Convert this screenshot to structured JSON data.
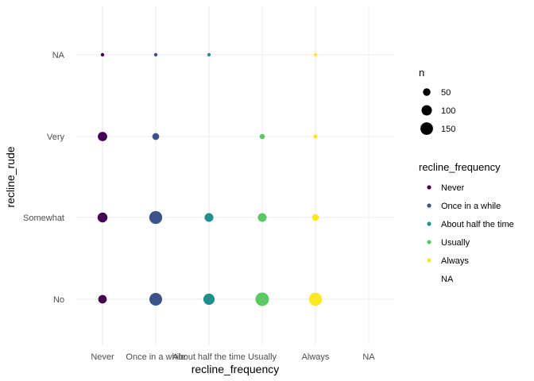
{
  "chart_data": {
    "type": "scatter",
    "x_axis": {
      "label": "recline_frequency",
      "categories": [
        "Never",
        "Once in a while",
        "About half the time",
        "Usually",
        "Always",
        "NA"
      ]
    },
    "y_axis": {
      "label": "recline_rude",
      "categories": [
        "No",
        "Somewhat",
        "Very",
        "NA"
      ]
    },
    "grid": true,
    "points": [
      {
        "x": "Never",
        "y": "No",
        "n": 65,
        "color_group": "Never"
      },
      {
        "x": "Never",
        "y": "Somewhat",
        "n": 90,
        "color_group": "Never"
      },
      {
        "x": "Never",
        "y": "Very",
        "n": 80,
        "color_group": "Never"
      },
      {
        "x": "Never",
        "y": "NA",
        "n": 5,
        "color_group": "Never"
      },
      {
        "x": "Once in a while",
        "y": "No",
        "n": 155,
        "color_group": "Once in a while"
      },
      {
        "x": "Once in a while",
        "y": "Somewhat",
        "n": 160,
        "color_group": "Once in a while"
      },
      {
        "x": "Once in a while",
        "y": "Very",
        "n": 40,
        "color_group": "Once in a while"
      },
      {
        "x": "Once in a while",
        "y": "NA",
        "n": 5,
        "color_group": "Once in a while"
      },
      {
        "x": "About half the time",
        "y": "No",
        "n": 120,
        "color_group": "About half the time"
      },
      {
        "x": "About half the time",
        "y": "Somewhat",
        "n": 70,
        "color_group": "About half the time"
      },
      {
        "x": "About half the time",
        "y": "NA",
        "n": 5,
        "color_group": "About half the time"
      },
      {
        "x": "Usually",
        "y": "No",
        "n": 175,
        "color_group": "Usually"
      },
      {
        "x": "Usually",
        "y": "Somewhat",
        "n": 70,
        "color_group": "Usually"
      },
      {
        "x": "Usually",
        "y": "Very",
        "n": 20,
        "color_group": "Usually"
      },
      {
        "x": "Always",
        "y": "No",
        "n": 165,
        "color_group": "Always"
      },
      {
        "x": "Always",
        "y": "Somewhat",
        "n": 40,
        "color_group": "Always"
      },
      {
        "x": "Always",
        "y": "Very",
        "n": 10,
        "color_group": "Always"
      },
      {
        "x": "Always",
        "y": "NA",
        "n": 5,
        "color_group": "Always"
      }
    ],
    "size_legend": {
      "title": "n",
      "breaks": [
        50,
        100,
        150
      ]
    },
    "color_legend": {
      "title": "recline_frequency",
      "items": [
        {
          "label": "Never",
          "color": "#440154"
        },
        {
          "label": "Once in a while",
          "color": "#3B528B"
        },
        {
          "label": "About half the time",
          "color": "#21908C"
        },
        {
          "label": "Usually",
          "color": "#5DC863"
        },
        {
          "label": "Always",
          "color": "#FDE725"
        },
        {
          "label": "NA",
          "color": null
        }
      ]
    },
    "colors": {
      "Never": "#440154",
      "Once in a while": "#3B528B",
      "About half the time": "#21908C",
      "Usually": "#5DC863",
      "Always": "#FDE725"
    },
    "size_scale": {
      "min_n": 5,
      "max_n": 175
    }
  }
}
